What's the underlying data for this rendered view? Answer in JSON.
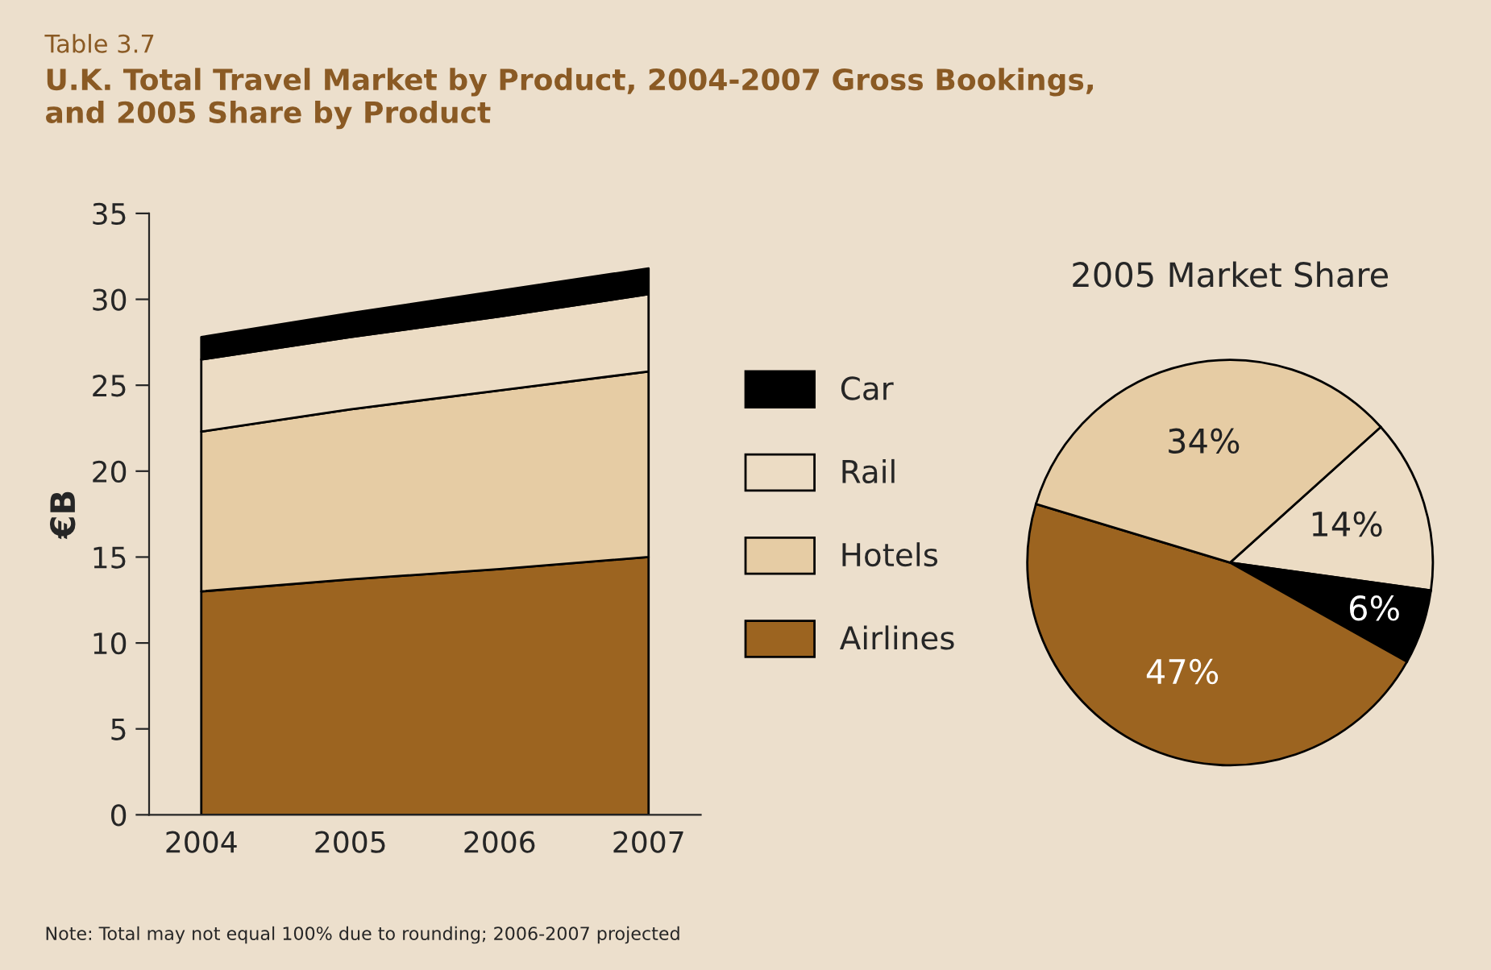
{
  "chart_data": [
    {
      "type": "area",
      "title": "Table 3.7",
      "subtitle": "U.K. Total Travel Market by Product, 2004-2007 Gross Bookings,\nand 2005 Share by Product",
      "ylabel": "€B",
      "stacked": true,
      "categories": [
        "2004",
        "2005",
        "2006",
        "2007"
      ],
      "series": [
        {
          "name": "Airlines",
          "color": "#9c6420",
          "values": [
            13,
            13.7,
            14.3,
            15
          ]
        },
        {
          "name": "Hotels",
          "color": "#e6cca4",
          "values": [
            9.3,
            9.9,
            10.4,
            10.8
          ]
        },
        {
          "name": "Rail",
          "color": "#ecdcc4",
          "values": [
            4.2,
            4.2,
            4.3,
            4.5
          ]
        },
        {
          "name": "Car",
          "color": "#000000",
          "values": [
            1.3,
            1.4,
            1.5,
            1.5
          ]
        }
      ],
      "ylim": [
        0,
        35
      ],
      "yticks": [
        0,
        5,
        10,
        15,
        20,
        25,
        30,
        35
      ],
      "grid": false,
      "legend": "right",
      "annotations": [
        "Note: Total may not equal 100% due to rounding; 2006-2007 projected"
      ]
    },
    {
      "type": "pie",
      "title": "2005 Market Share",
      "categories": [
        null,
        null,
        null,
        null
      ],
      "values": [
        14,
        6,
        47,
        34
      ],
      "colors": [
        "#ecdcc4",
        "#000000",
        "#9c6420",
        "#e6cca4"
      ],
      "value_labels": [
        "14%",
        "6%",
        "47%",
        "34%"
      ]
    }
  ]
}
